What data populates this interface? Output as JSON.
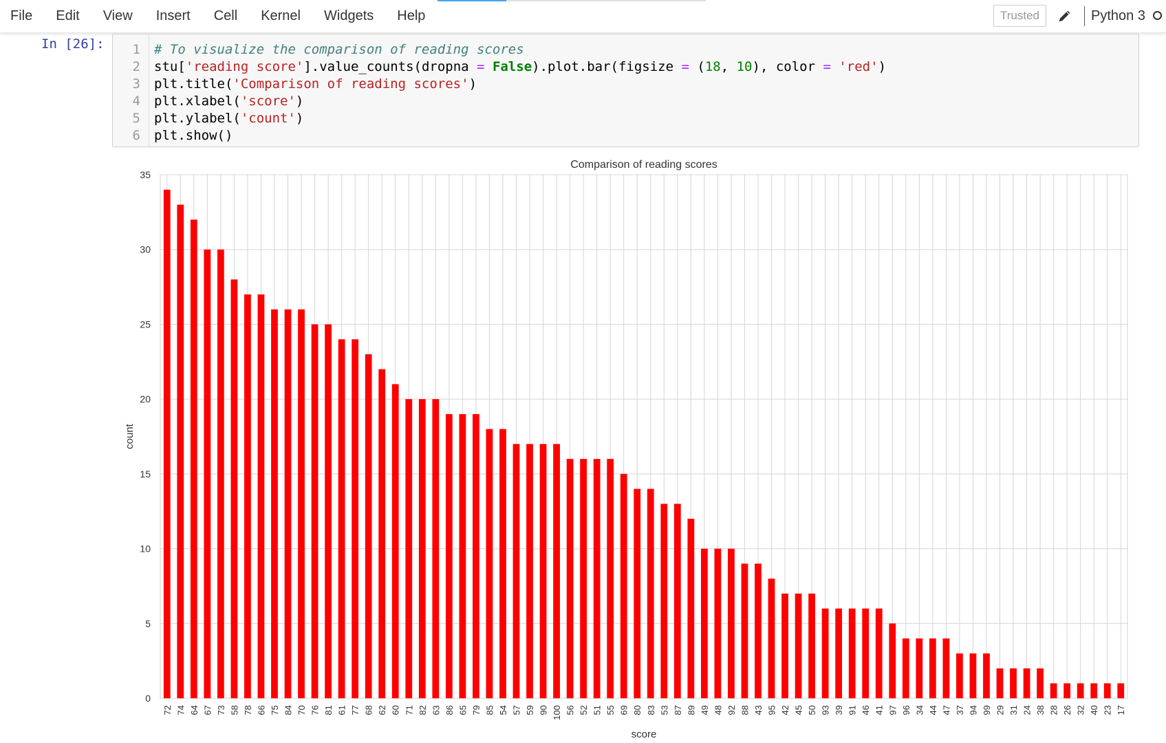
{
  "menu": {
    "items": [
      "File",
      "Edit",
      "View",
      "Insert",
      "Cell",
      "Kernel",
      "Widgets",
      "Help"
    ]
  },
  "header": {
    "trusted_label": "Trusted",
    "kernel_name": "Python 3"
  },
  "cell": {
    "prompt": "In [26]:",
    "lines": [
      {
        "num": "1",
        "segments": [
          {
            "t": "# To visualize the comparison of reading scores",
            "c": "c-comment"
          }
        ]
      },
      {
        "num": "2",
        "segments": [
          {
            "t": "stu[",
            "c": ""
          },
          {
            "t": "'reading score'",
            "c": "c-str"
          },
          {
            "t": "].value_counts(dropna ",
            "c": ""
          },
          {
            "t": "=",
            "c": "c-op"
          },
          {
            "t": " ",
            "c": ""
          },
          {
            "t": "False",
            "c": "c-kw"
          },
          {
            "t": ").plot.bar(figsize ",
            "c": ""
          },
          {
            "t": "=",
            "c": "c-op"
          },
          {
            "t": " (",
            "c": ""
          },
          {
            "t": "18",
            "c": "c-num"
          },
          {
            "t": ", ",
            "c": ""
          },
          {
            "t": "10",
            "c": "c-num"
          },
          {
            "t": "), color ",
            "c": ""
          },
          {
            "t": "=",
            "c": "c-op"
          },
          {
            "t": " ",
            "c": ""
          },
          {
            "t": "'red'",
            "c": "c-str"
          },
          {
            "t": ")",
            "c": ""
          }
        ]
      },
      {
        "num": "3",
        "segments": [
          {
            "t": "plt.title(",
            "c": ""
          },
          {
            "t": "'Comparison of reading scores'",
            "c": "c-str"
          },
          {
            "t": ")",
            "c": ""
          }
        ]
      },
      {
        "num": "4",
        "segments": [
          {
            "t": "plt.xlabel(",
            "c": ""
          },
          {
            "t": "'score'",
            "c": "c-str"
          },
          {
            "t": ")",
            "c": ""
          }
        ]
      },
      {
        "num": "5",
        "segments": [
          {
            "t": "plt.ylabel(",
            "c": ""
          },
          {
            "t": "'count'",
            "c": "c-str"
          },
          {
            "t": ")",
            "c": ""
          }
        ]
      },
      {
        "num": "6",
        "segments": [
          {
            "t": "plt.show()",
            "c": ""
          }
        ]
      }
    ]
  },
  "chart_data": {
    "type": "bar",
    "title": "Comparison of reading scores",
    "xlabel": "score",
    "ylabel": "count",
    "ylim": [
      0,
      35
    ],
    "yticks": [
      0,
      5,
      10,
      15,
      20,
      25,
      30,
      35
    ],
    "grid": true,
    "bar_color": "#ff0000",
    "categories": [
      "72",
      "74",
      "64",
      "67",
      "73",
      "58",
      "78",
      "66",
      "75",
      "84",
      "70",
      "76",
      "81",
      "61",
      "77",
      "68",
      "62",
      "60",
      "71",
      "82",
      "63",
      "86",
      "65",
      "79",
      "85",
      "54",
      "57",
      "59",
      "90",
      "100",
      "56",
      "52",
      "51",
      "55",
      "69",
      "80",
      "83",
      "53",
      "87",
      "89",
      "49",
      "48",
      "92",
      "88",
      "43",
      "95",
      "42",
      "45",
      "50",
      "93",
      "39",
      "91",
      "46",
      "41",
      "97",
      "96",
      "34",
      "44",
      "47",
      "37",
      "94",
      "99",
      "29",
      "31",
      "24",
      "38",
      "28",
      "26",
      "32",
      "40",
      "23",
      "17"
    ],
    "values": [
      34,
      33,
      32,
      30,
      30,
      28,
      27,
      27,
      26,
      26,
      26,
      25,
      25,
      24,
      24,
      23,
      22,
      21,
      20,
      20,
      20,
      19,
      19,
      19,
      18,
      18,
      17,
      17,
      17,
      17,
      16,
      16,
      16,
      16,
      15,
      14,
      14,
      13,
      13,
      12,
      10,
      10,
      10,
      9,
      9,
      8,
      7,
      7,
      7,
      6,
      6,
      6,
      6,
      6,
      5,
      4,
      4,
      4,
      4,
      3,
      3,
      3,
      2,
      2,
      2,
      2,
      1,
      1,
      1,
      1,
      1,
      1
    ]
  }
}
